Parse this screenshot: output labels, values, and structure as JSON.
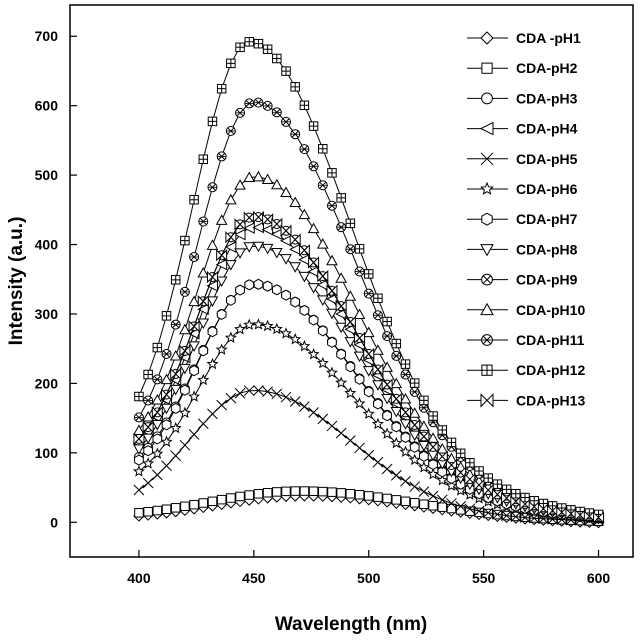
{
  "chart_data": {
    "type": "line",
    "xlabel": "Wavelength (nm)",
    "ylabel": "Intensity (a.u.)",
    "xlim": [
      370,
      615
    ],
    "ylim": [
      -50,
      745
    ],
    "xticks": [
      400,
      450,
      500,
      550,
      600
    ],
    "yticks": [
      0,
      100,
      200,
      300,
      400,
      500,
      600,
      700
    ],
    "grid": false,
    "legend_position": "top-right",
    "x_start": 400,
    "x_end": 600,
    "x_step": 4,
    "series": [
      {
        "name": "CDA -pH1",
        "marker": "diamond",
        "peak_x": 472,
        "peak": 38,
        "baseline_start": 2,
        "baseline_end": -2,
        "sigma_left": 40,
        "sigma_right": 50
      },
      {
        "name": "CDA-pH2",
        "marker": "square",
        "peak_x": 470,
        "peak": 45,
        "baseline_start": 5,
        "baseline_end": 0,
        "sigma_left": 40,
        "sigma_right": 50
      },
      {
        "name": "CDA-pH3",
        "marker": "circle",
        "peak_x": 450,
        "peak": 343,
        "baseline_start": 55,
        "baseline_end": 5,
        "sigma_left": 25,
        "sigma_right": 43
      },
      {
        "name": "CDA-pH4",
        "marker": "triangle-left",
        "peak_x": 450,
        "peak": 425,
        "baseline_start": 65,
        "baseline_end": 5,
        "sigma_left": 25,
        "sigma_right": 43
      },
      {
        "name": "CDA-pH5",
        "marker": "x",
        "peak_x": 450,
        "peak": 190,
        "baseline_start": 10,
        "baseline_end": 2,
        "sigma_left": 28,
        "sigma_right": 42
      },
      {
        "name": "CDA-pH6",
        "marker": "star",
        "peak_x": 450,
        "peak": 285,
        "baseline_start": 40,
        "baseline_end": 5,
        "sigma_left": 25,
        "sigma_right": 43
      },
      {
        "name": "CDA-pH7",
        "marker": "hexagon",
        "peak_x": 450,
        "peak": 343,
        "baseline_start": 50,
        "baseline_end": 5,
        "sigma_left": 25,
        "sigma_right": 43
      },
      {
        "name": "CDA-pH8",
        "marker": "triangle-down",
        "peak_x": 450,
        "peak": 398,
        "baseline_start": 60,
        "baseline_end": 5,
        "sigma_left": 25,
        "sigma_right": 43
      },
      {
        "name": "CDA-pH9",
        "marker": "circle-x",
        "peak_x": 450,
        "peak": 440,
        "baseline_start": 70,
        "baseline_end": 6,
        "sigma_left": 25,
        "sigma_right": 43
      },
      {
        "name": "CDA-pH10",
        "marker": "triangle-up",
        "peak_x": 450,
        "peak": 498,
        "baseline_start": 75,
        "baseline_end": 6,
        "sigma_left": 25,
        "sigma_right": 43
      },
      {
        "name": "CDA-pH11",
        "marker": "circle-cross",
        "peak_x": 450,
        "peak": 605,
        "baseline_start": 80,
        "baseline_end": 8,
        "sigma_left": 25,
        "sigma_right": 43
      },
      {
        "name": "CDA-pH12",
        "marker": "square-cross",
        "peak_x": 448,
        "peak": 692,
        "baseline_start": 85,
        "baseline_end": 10,
        "sigma_left": 25,
        "sigma_right": 43
      },
      {
        "name": "CDA-pH13",
        "marker": "bowtie",
        "peak_x": 450,
        "peak": 440,
        "baseline_start": 70,
        "baseline_end": 6,
        "sigma_left": 25,
        "sigma_right": 43
      }
    ]
  }
}
